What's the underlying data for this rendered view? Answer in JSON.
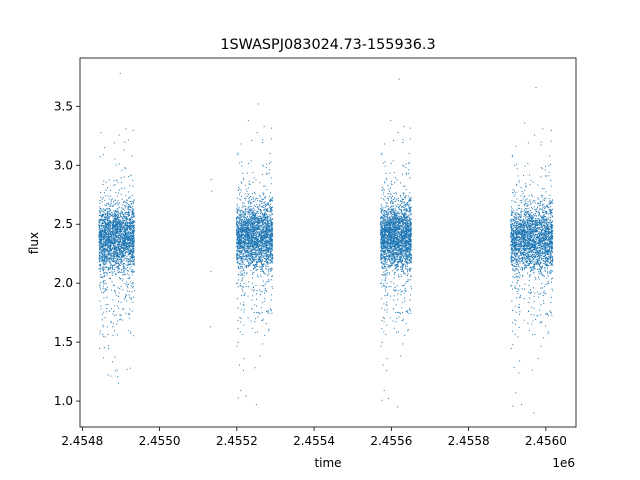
{
  "chart_data": {
    "type": "scatter",
    "title": "1SWASPJ083024.73-155936.3",
    "xlabel": "time",
    "ylabel": "flux",
    "x_offset_label": "1e6",
    "xlim": [
      2454794,
      2456078
    ],
    "ylim": [
      0.78,
      3.91
    ],
    "x_ticks": [
      2454800,
      2455000,
      2455200,
      2455400,
      2455600,
      2455800,
      2456000
    ],
    "x_tick_labels": [
      "2.4548",
      "2.4550",
      "2.4552",
      "2.4554",
      "2.4556",
      "2.4558",
      "2.4560"
    ],
    "y_ticks": [
      1.0,
      1.5,
      2.0,
      2.5,
      3.0,
      3.5
    ],
    "y_tick_labels": [
      "1.0",
      "1.5",
      "2.0",
      "2.5",
      "3.0",
      "3.5"
    ],
    "marker_color": "#1f77b4",
    "grid": false,
    "legend": "none",
    "series": [
      {
        "seasons": [
          {
            "x_range": [
              2454843,
              2454935
            ],
            "flux_center": 2.38,
            "flux_min": 1.15,
            "flux_max": 3.78
          },
          {
            "x_range": [
              2455199,
              2455293
            ],
            "flux_center": 2.4,
            "flux_min": 0.97,
            "flux_max": 3.52
          },
          {
            "x_range": [
              2455572,
              2455652
            ],
            "flux_center": 2.4,
            "flux_min": 0.95,
            "flux_max": 3.73
          },
          {
            "x_range": [
              2455909,
              2456018
            ],
            "flux_center": 2.38,
            "flux_min": 0.9,
            "flux_max": 3.66
          }
        ],
        "sparse_points": [
          {
            "x": 2455132,
            "y": 1.63
          },
          {
            "x": 2455133,
            "y": 2.1
          },
          {
            "x": 2455134,
            "y": 2.88
          },
          {
            "x": 2455135,
            "y": 2.78
          }
        ]
      }
    ]
  }
}
